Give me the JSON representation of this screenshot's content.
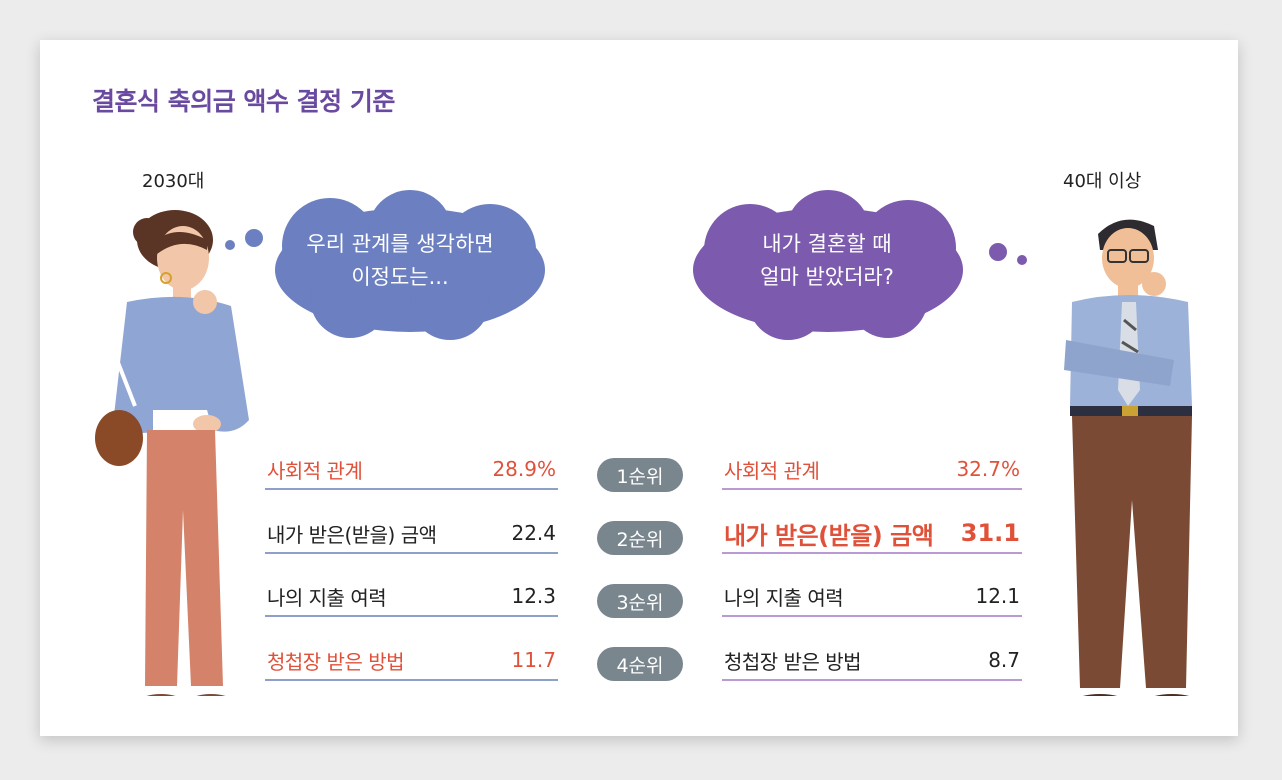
{
  "title": "결혼식 축의금 액수 결정 기준",
  "groups": {
    "left": {
      "label": "2030대",
      "quote_line1": "우리 관계를 생각하면",
      "quote_line2": "이정도는..."
    },
    "right": {
      "label": "40대 이상",
      "quote_line1": "내가 결혼할 때",
      "quote_line2": "얼마 받았더라?"
    }
  },
  "ranks": [
    "1순위",
    "2순위",
    "3순위",
    "4순위"
  ],
  "colors": {
    "title": "#6a4aa0",
    "highlight": "#e0513a",
    "bubble_left": "#6b7fc1",
    "bubble_right": "#7c5aad",
    "rank_badge": "#79868e"
  },
  "chart_data": {
    "type": "table",
    "title": "결혼식 축의금 액수 결정 기준",
    "columns": [
      "2030대",
      "40대 이상"
    ],
    "rows_left": [
      {
        "label": "사회적 관계",
        "value": "28.9%"
      },
      {
        "label": "내가 받은(받을) 금액",
        "value": "22.4"
      },
      {
        "label": "나의 지출 여력",
        "value": "12.3"
      },
      {
        "label": "청첩장 받은 방법",
        "value": "11.7"
      }
    ],
    "rows_right": [
      {
        "label": "사회적 관계",
        "value": "32.7%"
      },
      {
        "label": "내가 받은(받을) 금액",
        "value": "31.1"
      },
      {
        "label": "나의 지출 여력",
        "value": "12.1"
      },
      {
        "label": "청첩장 받은 방법",
        "value": "8.7"
      }
    ]
  }
}
